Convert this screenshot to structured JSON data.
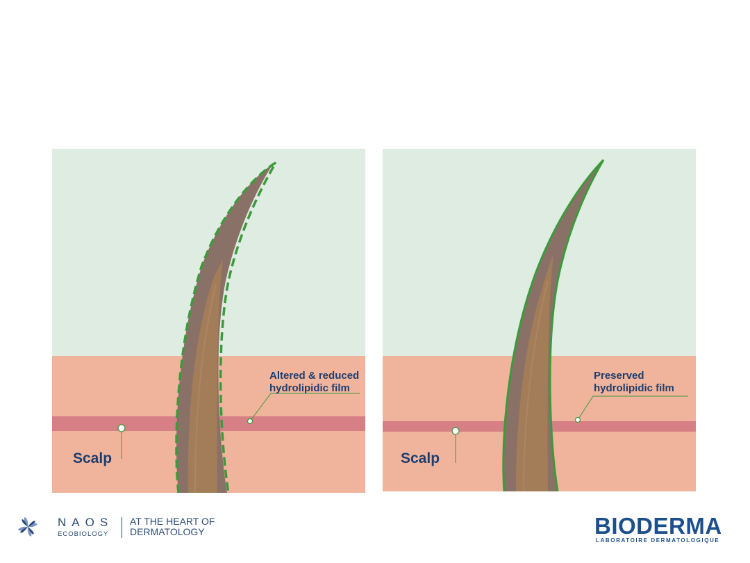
{
  "left_panel": {
    "scalp_label": "Scalp",
    "film_label_line1": "Altered & reduced",
    "film_label_line2": "hydrolipidic film",
    "film_style": "dashed"
  },
  "right_panel": {
    "scalp_label": "Scalp",
    "film_label_line1": "Preserved",
    "film_label_line2": "hydrolipidic film",
    "film_style": "solid"
  },
  "footer": {
    "naos_name": "NAOS",
    "naos_sub": "ECOBIOLOGY",
    "naos_tagline_line1": "AT THE HEART OF",
    "naos_tagline_line2": "DERMATOLOGY",
    "bioderma_name": "BIODERMA",
    "bioderma_sub": "LABORATOIRE DERMATOLOGIQUE"
  },
  "colors": {
    "air": "#deece1",
    "skin": "#f0b49c",
    "skin_band": "#d67f85",
    "hair_outer": "#8a7168",
    "hair_inner": "#a37d58",
    "film": "#3d9a3b",
    "text": "#1f3e6e"
  }
}
